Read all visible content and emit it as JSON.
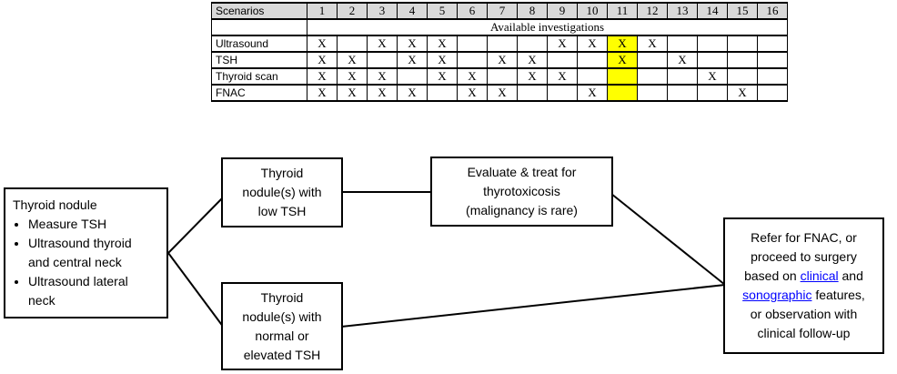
{
  "table": {
    "header_label": "Scenarios",
    "columns": [
      "1",
      "2",
      "3",
      "4",
      "5",
      "6",
      "7",
      "8",
      "9",
      "10",
      "11",
      "12",
      "13",
      "14",
      "15",
      "16"
    ],
    "subheader": "Available investigations",
    "mark": "X",
    "highlight_column": 11,
    "rows": [
      {
        "label": "Ultrasound",
        "marks": [
          1,
          3,
          4,
          5,
          9,
          10,
          11,
          12
        ]
      },
      {
        "label": "TSH",
        "marks": [
          1,
          2,
          4,
          5,
          7,
          8,
          11,
          13
        ]
      },
      {
        "label": "Thyroid scan",
        "marks": [
          1,
          2,
          3,
          5,
          6,
          8,
          9,
          14
        ]
      },
      {
        "label": "FNAC",
        "marks": [
          1,
          2,
          3,
          4,
          6,
          7,
          10,
          15
        ]
      }
    ]
  },
  "flowchart": {
    "start": {
      "title": "Thyroid nodule",
      "bullets": [
        "Measure TSH",
        "Ultrasound thyroid\nand central neck",
        "Ultrasound lateral\nneck"
      ]
    },
    "low_tsh": "Thyroid\nnodule(s) with\nlow TSH",
    "normal_tsh": "Thyroid\nnodule(s) with\nnormal or\nelevated TSH",
    "evaluate": "Evaluate & treat for\nthyrotoxicosis\n(malignancy is rare)",
    "refer": {
      "lines": [
        [
          {
            "t": "Refer for FNAC, or"
          }
        ],
        [
          {
            "t": "proceed to surgery"
          }
        ],
        [
          {
            "t": "based on "
          },
          {
            "t": "clinical",
            "link": true,
            "name": "clinical-link"
          },
          {
            "t": " and"
          }
        ],
        [
          {
            "t": "sonographic",
            "link": true,
            "name": "sonographic-link"
          },
          {
            "t": " features,"
          }
        ],
        [
          {
            "t": "or observation with"
          }
        ],
        [
          {
            "t": "clinical follow-up"
          }
        ]
      ]
    }
  },
  "colors": {
    "highlight_yellow": "#ffff00",
    "table_header_bg": "#d9d9d9",
    "link_blue": "#0000ff",
    "line_black": "#000000"
  }
}
